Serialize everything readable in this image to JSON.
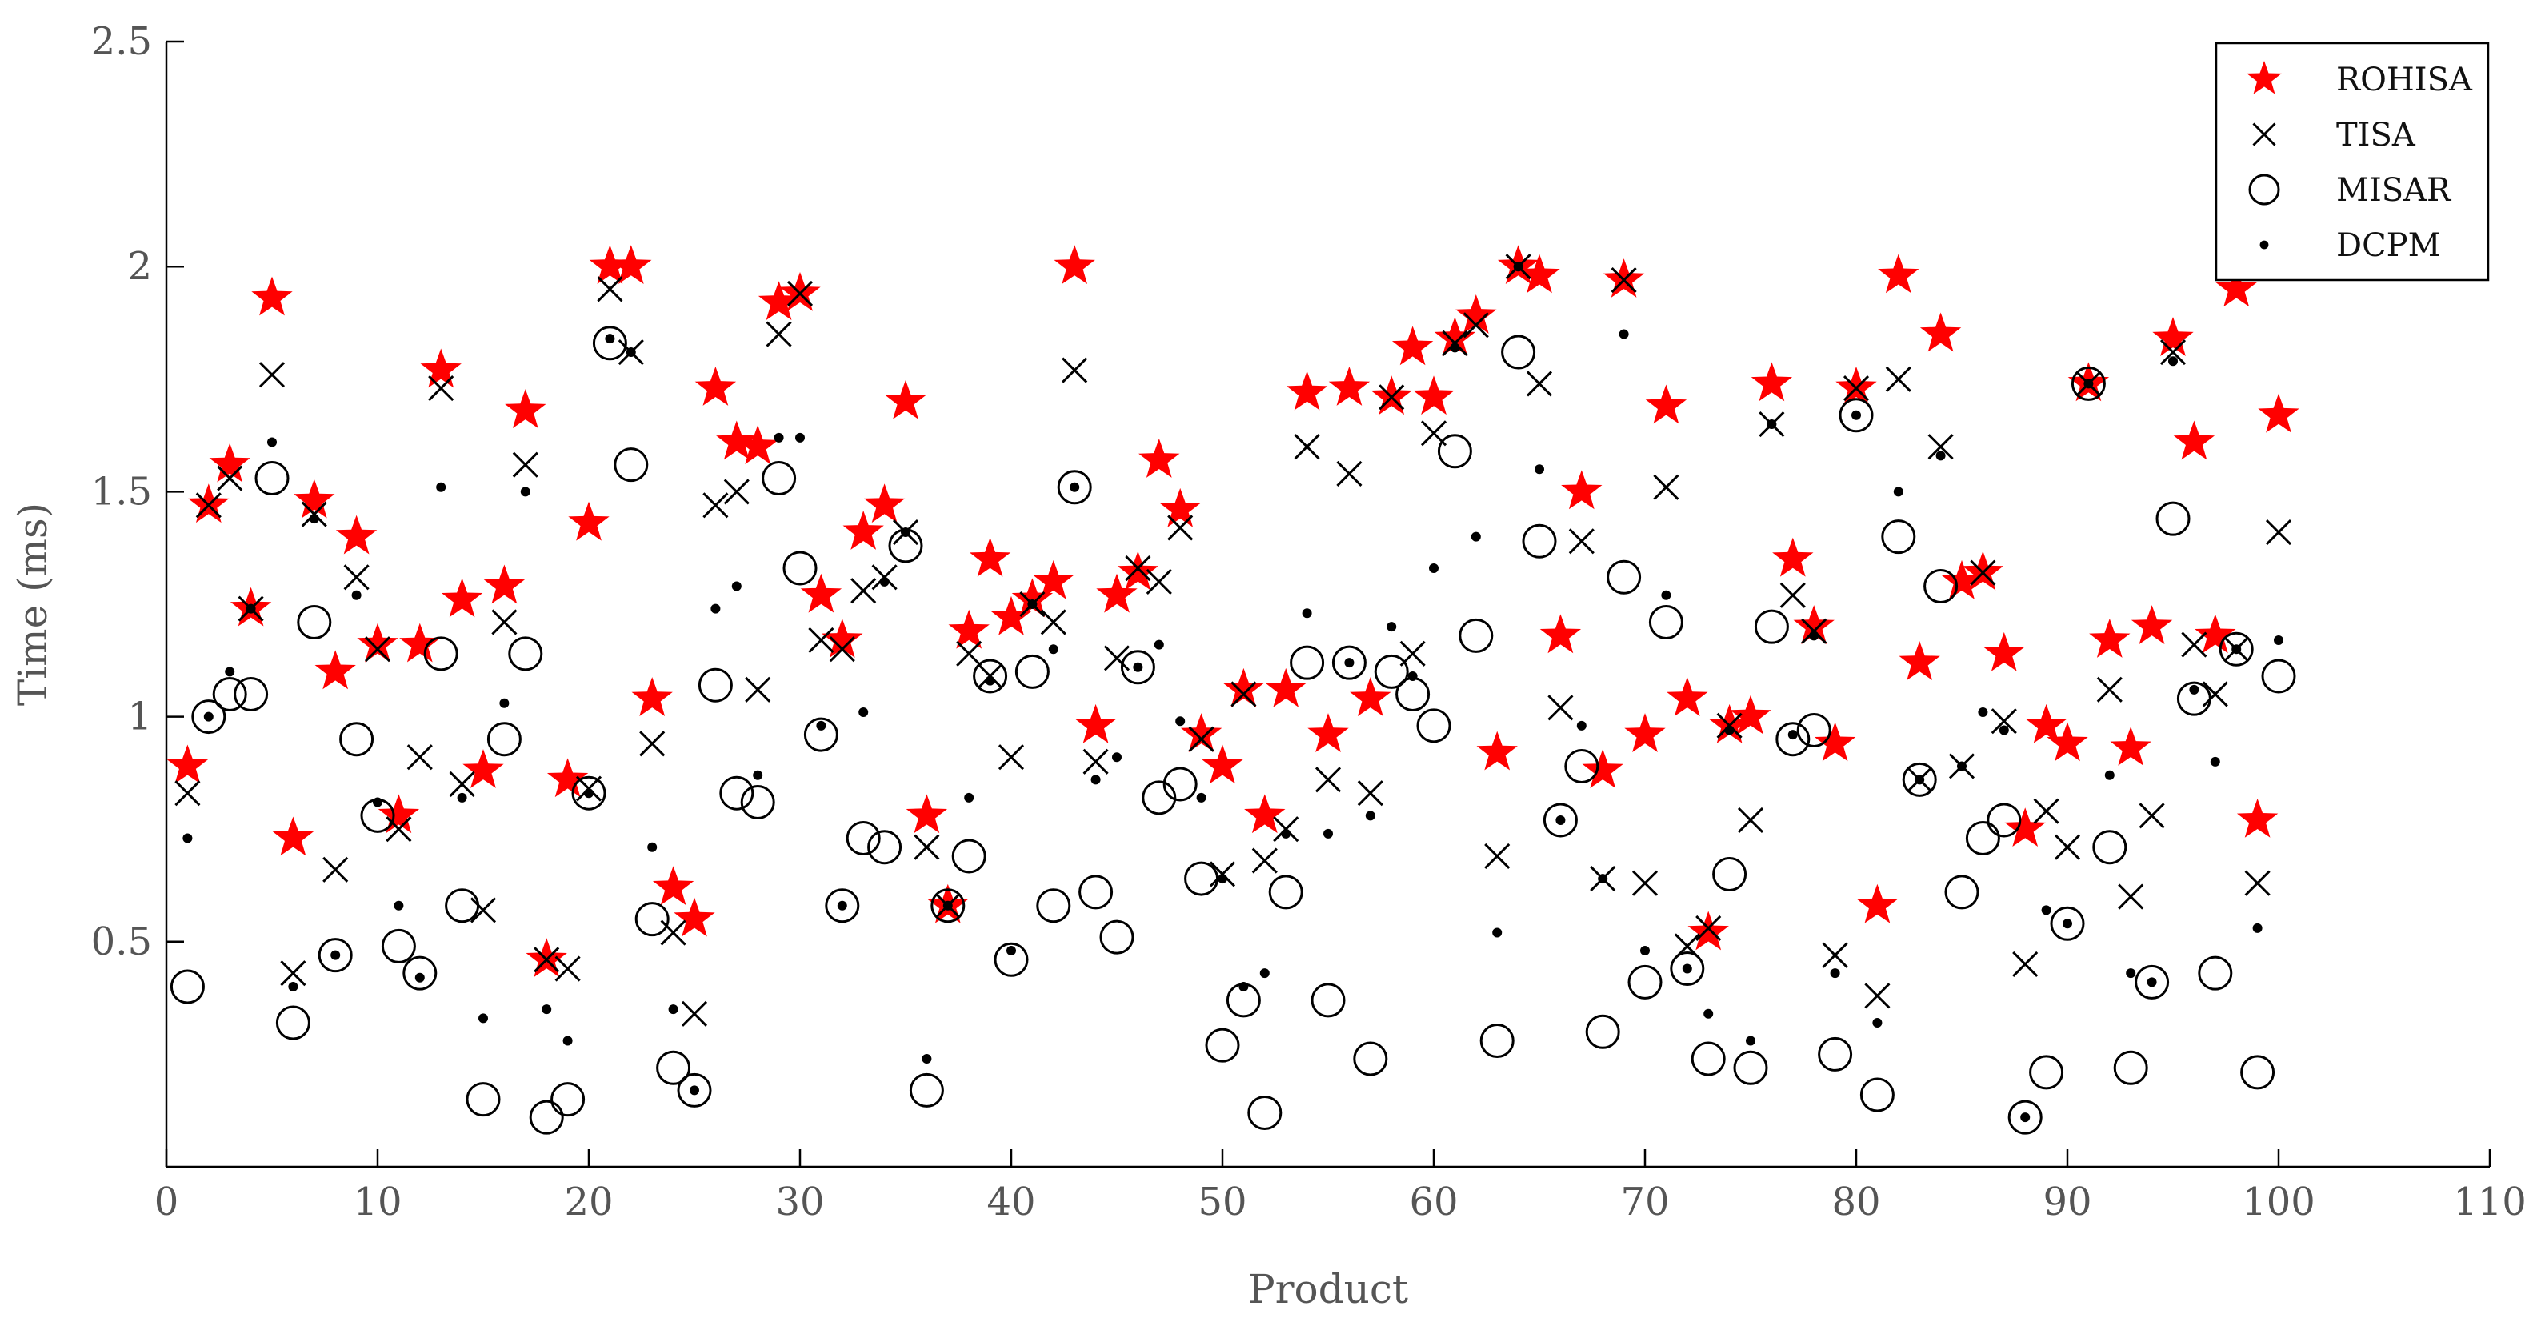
{
  "chart_data": {
    "type": "scatter",
    "title": "",
    "xlabel": "Product",
    "ylabel": "Time (ms)",
    "xlim": [
      0,
      110
    ],
    "ylim": [
      0,
      2.5
    ],
    "xticks": [
      0,
      10,
      20,
      30,
      40,
      50,
      60,
      70,
      80,
      90,
      100,
      110
    ],
    "yticks": [
      0.5,
      1,
      1.5,
      2,
      2.5
    ],
    "grid": false,
    "legend_position": "top-right",
    "x": [
      1,
      2,
      3,
      4,
      5,
      6,
      7,
      8,
      9,
      10,
      11,
      12,
      13,
      14,
      15,
      16,
      17,
      18,
      19,
      20,
      21,
      22,
      23,
      24,
      25,
      26,
      27,
      28,
      29,
      30,
      31,
      32,
      33,
      34,
      35,
      36,
      37,
      38,
      39,
      40,
      41,
      42,
      43,
      44,
      45,
      46,
      47,
      48,
      49,
      50,
      51,
      52,
      53,
      54,
      55,
      56,
      57,
      58,
      59,
      60,
      61,
      62,
      63,
      64,
      65,
      66,
      67,
      68,
      69,
      70,
      71,
      72,
      73,
      74,
      75,
      76,
      77,
      78,
      79,
      80,
      81,
      82,
      83,
      84,
      85,
      86,
      87,
      88,
      89,
      90,
      91,
      92,
      93,
      94,
      95,
      96,
      97,
      98,
      99,
      100
    ],
    "series": [
      {
        "name": "ROHISA",
        "marker": "star",
        "color": "#ff0000",
        "values": [
          0.89,
          1.47,
          1.56,
          1.24,
          1.93,
          0.73,
          1.48,
          1.1,
          1.4,
          1.16,
          0.78,
          1.16,
          1.77,
          1.26,
          0.88,
          1.29,
          1.68,
          0.46,
          0.86,
          1.43,
          2.0,
          2.0,
          1.04,
          0.62,
          0.55,
          1.73,
          1.61,
          1.6,
          1.92,
          1.94,
          1.27,
          1.17,
          1.41,
          1.47,
          1.7,
          0.78,
          0.58,
          1.19,
          1.35,
          1.22,
          1.26,
          1.3,
          2.0,
          0.98,
          1.27,
          1.32,
          1.57,
          1.46,
          0.96,
          0.89,
          1.06,
          0.78,
          1.06,
          1.72,
          0.96,
          1.73,
          1.04,
          1.71,
          1.82,
          1.71,
          1.84,
          1.89,
          0.92,
          2.0,
          1.98,
          1.18,
          1.5,
          0.88,
          1.97,
          0.96,
          1.69,
          1.04,
          0.52,
          0.98,
          1.0,
          1.74,
          1.35,
          1.2,
          0.94,
          1.73,
          0.58,
          1.98,
          1.12,
          1.85,
          1.3,
          1.32,
          1.14,
          0.75,
          0.98,
          0.94,
          1.74,
          1.17,
          0.93,
          1.2,
          1.84,
          1.61,
          1.18,
          1.95,
          0.77,
          1.67
        ]
      },
      {
        "name": "TISA",
        "marker": "x",
        "color": "#000000",
        "values": [
          0.83,
          1.47,
          1.53,
          1.24,
          1.76,
          0.43,
          1.45,
          0.66,
          1.31,
          1.15,
          0.75,
          0.91,
          1.73,
          0.85,
          0.57,
          1.21,
          1.56,
          0.46,
          0.44,
          0.84,
          1.95,
          1.81,
          0.94,
          0.52,
          0.34,
          1.47,
          1.5,
          1.06,
          1.85,
          1.94,
          1.17,
          1.15,
          1.28,
          1.31,
          1.41,
          0.71,
          0.58,
          1.14,
          1.09,
          0.91,
          1.25,
          1.21,
          1.77,
          0.9,
          1.13,
          1.33,
          1.3,
          1.42,
          0.95,
          0.65,
          1.05,
          0.68,
          0.75,
          1.6,
          0.86,
          1.54,
          0.83,
          1.71,
          1.14,
          1.63,
          1.83,
          1.87,
          0.69,
          2.0,
          1.74,
          1.02,
          1.39,
          0.64,
          1.97,
          0.63,
          1.51,
          0.49,
          0.53,
          0.98,
          0.77,
          1.65,
          1.27,
          1.19,
          0.47,
          1.73,
          0.38,
          1.75,
          0.86,
          1.6,
          0.89,
          1.32,
          0.99,
          0.45,
          0.79,
          0.71,
          1.74,
          1.06,
          0.6,
          0.78,
          1.81,
          1.16,
          1.05,
          1.15,
          0.63,
          1.41
        ]
      },
      {
        "name": "MISAR",
        "marker": "circle",
        "color": "#000000",
        "values": [
          0.4,
          1.0,
          1.05,
          1.05,
          1.53,
          0.32,
          1.21,
          0.47,
          0.95,
          0.78,
          0.49,
          0.43,
          1.14,
          0.58,
          0.15,
          0.95,
          1.14,
          0.11,
          0.15,
          0.83,
          1.83,
          1.56,
          0.55,
          0.22,
          0.17,
          1.07,
          0.83,
          0.81,
          1.53,
          1.33,
          0.96,
          0.58,
          0.73,
          0.71,
          1.38,
          0.17,
          0.58,
          0.69,
          1.09,
          0.46,
          1.1,
          0.58,
          1.51,
          0.61,
          0.51,
          1.11,
          0.82,
          0.85,
          0.64,
          0.27,
          0.37,
          0.12,
          0.61,
          1.12,
          0.37,
          1.12,
          0.24,
          1.1,
          1.05,
          0.98,
          1.59,
          1.18,
          0.28,
          1.81,
          1.39,
          0.77,
          0.89,
          0.3,
          1.31,
          0.41,
          1.21,
          0.44,
          0.24,
          0.65,
          0.22,
          1.2,
          0.95,
          0.97,
          0.25,
          1.67,
          0.16,
          1.4,
          0.86,
          1.29,
          0.61,
          0.73,
          0.77,
          0.11,
          0.21,
          0.54,
          1.74,
          0.71,
          0.22,
          0.41,
          1.44,
          1.04,
          0.43,
          1.15,
          0.21,
          1.09
        ]
      },
      {
        "name": "DCPM",
        "marker": "dot",
        "color": "#000000",
        "values": [
          0.73,
          1.0,
          1.1,
          1.24,
          1.61,
          0.4,
          1.44,
          0.47,
          1.27,
          0.81,
          0.58,
          0.42,
          1.51,
          0.82,
          0.33,
          1.03,
          1.5,
          0.35,
          0.28,
          0.83,
          1.84,
          1.81,
          0.71,
          0.35,
          0.17,
          1.24,
          1.29,
          0.87,
          1.62,
          1.62,
          0.98,
          0.58,
          1.01,
          1.3,
          1.41,
          0.24,
          0.58,
          0.82,
          1.08,
          0.48,
          1.25,
          1.15,
          1.51,
          0.86,
          0.91,
          1.11,
          1.16,
          0.99,
          0.82,
          0.64,
          0.4,
          0.43,
          0.74,
          1.23,
          0.74,
          1.12,
          0.78,
          1.2,
          1.09,
          1.33,
          1.82,
          1.4,
          0.52,
          2.0,
          1.55,
          0.77,
          0.98,
          0.64,
          1.85,
          0.48,
          1.27,
          0.44,
          0.34,
          0.97,
          0.28,
          1.65,
          0.96,
          1.18,
          0.43,
          1.67,
          0.32,
          1.5,
          0.86,
          1.58,
          0.89,
          1.01,
          0.97,
          0.11,
          0.57,
          0.54,
          1.74,
          0.87,
          0.43,
          0.41,
          1.79,
          1.06,
          0.9,
          1.15,
          0.53,
          1.17
        ]
      }
    ]
  }
}
